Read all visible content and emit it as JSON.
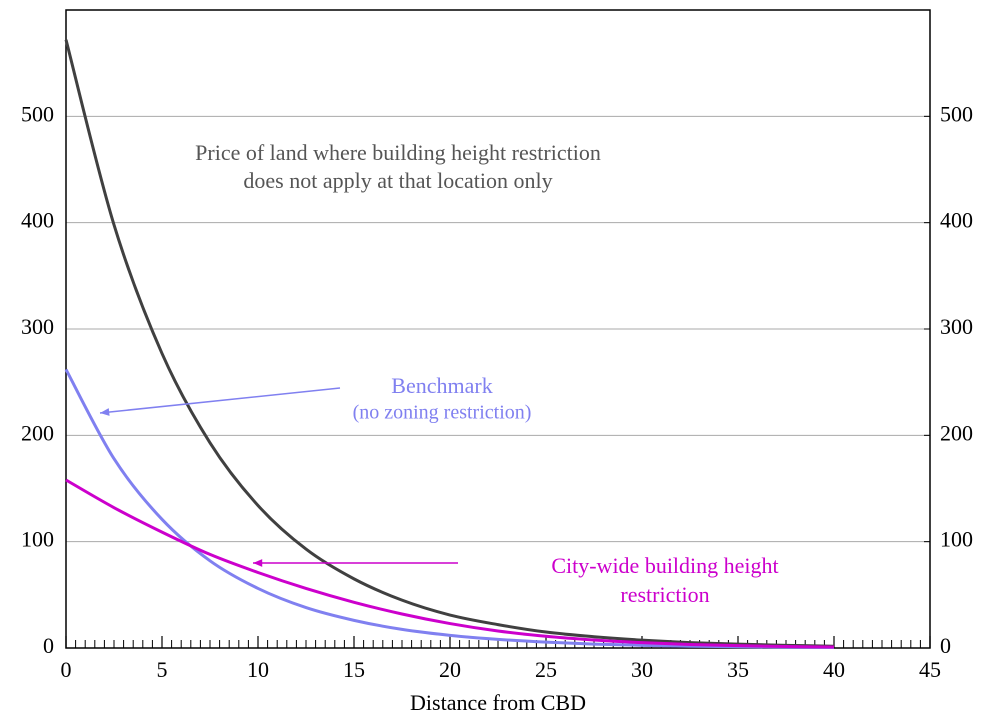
{
  "chart_data": {
    "type": "line",
    "x_label": "Distance from CBD",
    "x": [
      0,
      2.5,
      5,
      7.5,
      10,
      12.5,
      15,
      17.5,
      20,
      22.5,
      25,
      27.5,
      30,
      32.5,
      35,
      37.5,
      40
    ],
    "series": [
      {
        "name": "Price of land where building height restriction does not apply at that location only",
        "color": "#404040",
        "values": [
          572,
          398,
          277,
          193,
          134,
          93,
          65,
          45,
          31,
          22,
          15,
          10.6,
          7.4,
          5.1,
          3.6,
          2.5,
          1.7
        ]
      },
      {
        "name": "Benchmark",
        "color": "#8080f0",
        "values": [
          262,
          178,
          121,
          82,
          56,
          38,
          26,
          17.5,
          11.9,
          8.1,
          5.5,
          3.7,
          2.5,
          1.7,
          1.2,
          0.8,
          0.5
        ]
      },
      {
        "name": "City-wide building height restriction",
        "color": "#cc00cc",
        "values": [
          158,
          132,
          109,
          88,
          71,
          56,
          43,
          32,
          23,
          16,
          11,
          7.5,
          5,
          3.3,
          2.2,
          1.4,
          0.9
        ]
      }
    ],
    "annotations": [
      {
        "lines": [
          "Price of land where building height restriction",
          "does not apply at that location only"
        ],
        "color": "#555555"
      },
      {
        "lines": [
          "Benchmark",
          "(no zoning restriction)"
        ],
        "color": "#8080f0"
      },
      {
        "lines": [
          "City-wide building height",
          "restriction"
        ],
        "color": "#cc00cc"
      }
    ],
    "xlim": [
      0,
      45
    ],
    "xticks": [
      0,
      5,
      10,
      15,
      20,
      25,
      30,
      35,
      40,
      45
    ],
    "x_minor_step": 0.5,
    "ylim": [
      0,
      600
    ],
    "yticks": [
      0,
      100,
      200,
      300,
      400,
      500
    ],
    "y2lim": [
      0,
      600
    ],
    "y2ticks": [
      0,
      100,
      200,
      300,
      400,
      500
    ],
    "grid": true
  }
}
